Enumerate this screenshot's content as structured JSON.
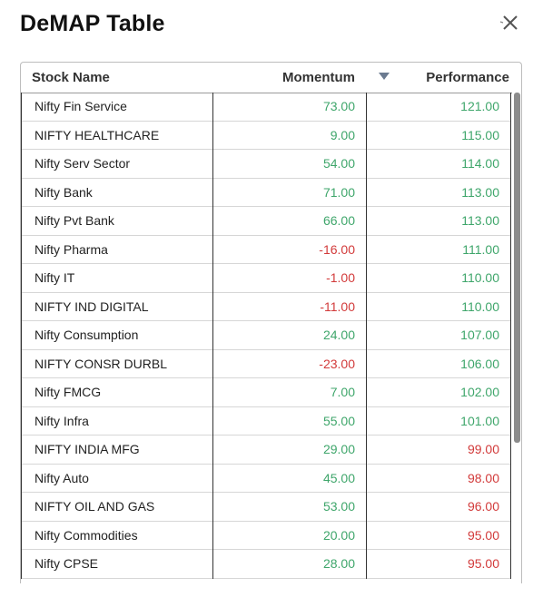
{
  "dialog": {
    "title": "DeMAP Table"
  },
  "table": {
    "headers": {
      "name": "Stock Name",
      "momentum": "Momentum",
      "performance": "Performance"
    },
    "sort_icon": "sort-descending-icon",
    "rows": [
      {
        "name": "Nifty Fin Service",
        "momentum": "73.00",
        "performance": "121.00"
      },
      {
        "name": "NIFTY HEALTHCARE",
        "momentum": "9.00",
        "performance": "115.00"
      },
      {
        "name": "Nifty Serv Sector",
        "momentum": "54.00",
        "performance": "114.00"
      },
      {
        "name": "Nifty Bank",
        "momentum": "71.00",
        "performance": "113.00"
      },
      {
        "name": "Nifty Pvt Bank",
        "momentum": "66.00",
        "performance": "113.00"
      },
      {
        "name": "Nifty Pharma",
        "momentum": "-16.00",
        "performance": "111.00"
      },
      {
        "name": "Nifty IT",
        "momentum": "-1.00",
        "performance": "110.00"
      },
      {
        "name": "NIFTY IND DIGITAL",
        "momentum": "-11.00",
        "performance": "110.00"
      },
      {
        "name": "Nifty Consumption",
        "momentum": "24.00",
        "performance": "107.00"
      },
      {
        "name": "NIFTY CONSR DURBL",
        "momentum": "-23.00",
        "performance": "106.00"
      },
      {
        "name": "Nifty FMCG",
        "momentum": "7.00",
        "performance": "102.00"
      },
      {
        "name": "Nifty Infra",
        "momentum": "55.00",
        "performance": "101.00"
      },
      {
        "name": "NIFTY INDIA MFG",
        "momentum": "29.00",
        "performance": "99.00"
      },
      {
        "name": "Nifty Auto",
        "momentum": "45.00",
        "performance": "98.00"
      },
      {
        "name": "NIFTY OIL AND GAS",
        "momentum": "53.00",
        "performance": "96.00"
      },
      {
        "name": "Nifty Commodities",
        "momentum": "20.00",
        "performance": "95.00"
      },
      {
        "name": "Nifty CPSE",
        "momentum": "28.00",
        "performance": "95.00"
      }
    ]
  },
  "colors": {
    "positive": "#3fa66b",
    "negative": "#d23a3a"
  }
}
